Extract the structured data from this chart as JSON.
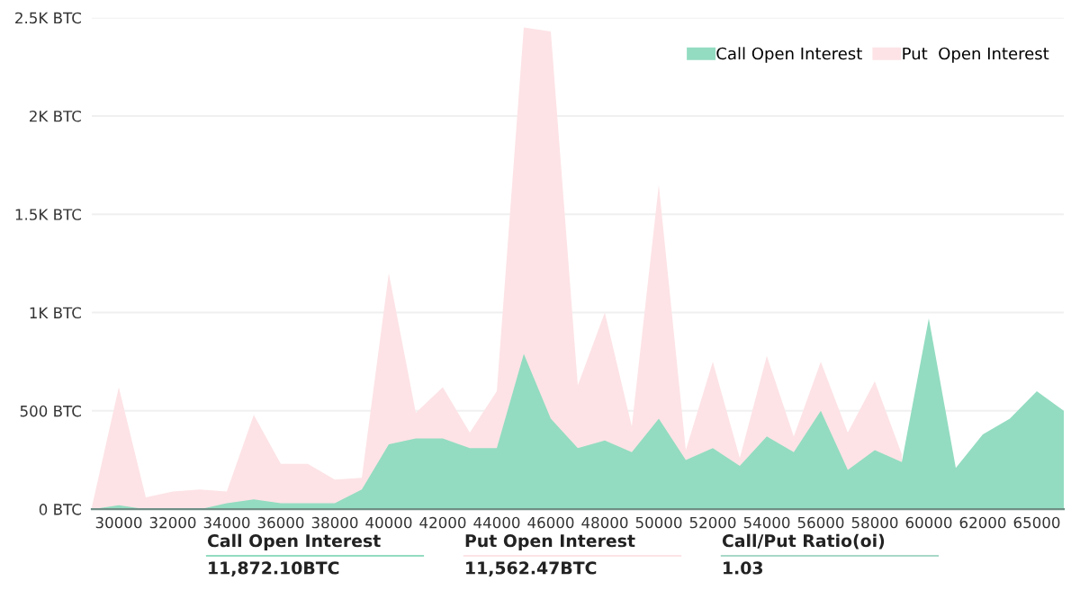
{
  "chart_data": {
    "type": "area",
    "categories": [
      null,
      "30000",
      null,
      "32000",
      null,
      "34000",
      null,
      "36000",
      null,
      "38000",
      null,
      "40000",
      null,
      "42000",
      null,
      "44000",
      null,
      "46000",
      null,
      "48000",
      null,
      "50000",
      null,
      "52000",
      null,
      "54000",
      null,
      "56000",
      null,
      "58000",
      null,
      "60000",
      null,
      "62000",
      null,
      "65000",
      null
    ],
    "series": [
      {
        "name": "Call Open Interest",
        "color": "#93dcc1",
        "values": [
          0,
          20,
          0,
          0,
          0,
          30,
          50,
          30,
          30,
          30,
          100,
          330,
          360,
          360,
          310,
          310,
          790,
          460,
          310,
          350,
          290,
          460,
          250,
          310,
          220,
          370,
          290,
          500,
          200,
          300,
          240,
          970,
          210,
          380,
          460,
          600,
          500
        ]
      },
      {
        "name": "Put  Open Interest",
        "color": "#fde3e6",
        "values": [
          10,
          620,
          60,
          90,
          100,
          90,
          480,
          230,
          230,
          150,
          160,
          1200,
          490,
          620,
          390,
          600,
          2450,
          2430,
          630,
          1000,
          420,
          1650,
          300,
          750,
          260,
          780,
          370,
          750,
          390,
          650,
          280,
          null,
          null,
          null,
          null,
          null,
          null
        ]
      }
    ],
    "ylim": [
      0,
      2500
    ],
    "yticks": [
      {
        "value": 0,
        "label": "0 BTC"
      },
      {
        "value": 500,
        "label": "500 BTC"
      },
      {
        "value": 1000,
        "label": "1K BTC"
      },
      {
        "value": 1500,
        "label": "1.5K BTC"
      },
      {
        "value": 2000,
        "label": "2K BTC"
      },
      {
        "value": 2500,
        "label": "2.5K BTC"
      }
    ],
    "grid": "y",
    "legend": "top right",
    "annotations": [
      "Call Open Interest",
      "11,872.10BTC",
      "Put Open Interest",
      "11,562.47BTC",
      "Call/Put Ratio(oi)",
      "1.03"
    ]
  }
}
